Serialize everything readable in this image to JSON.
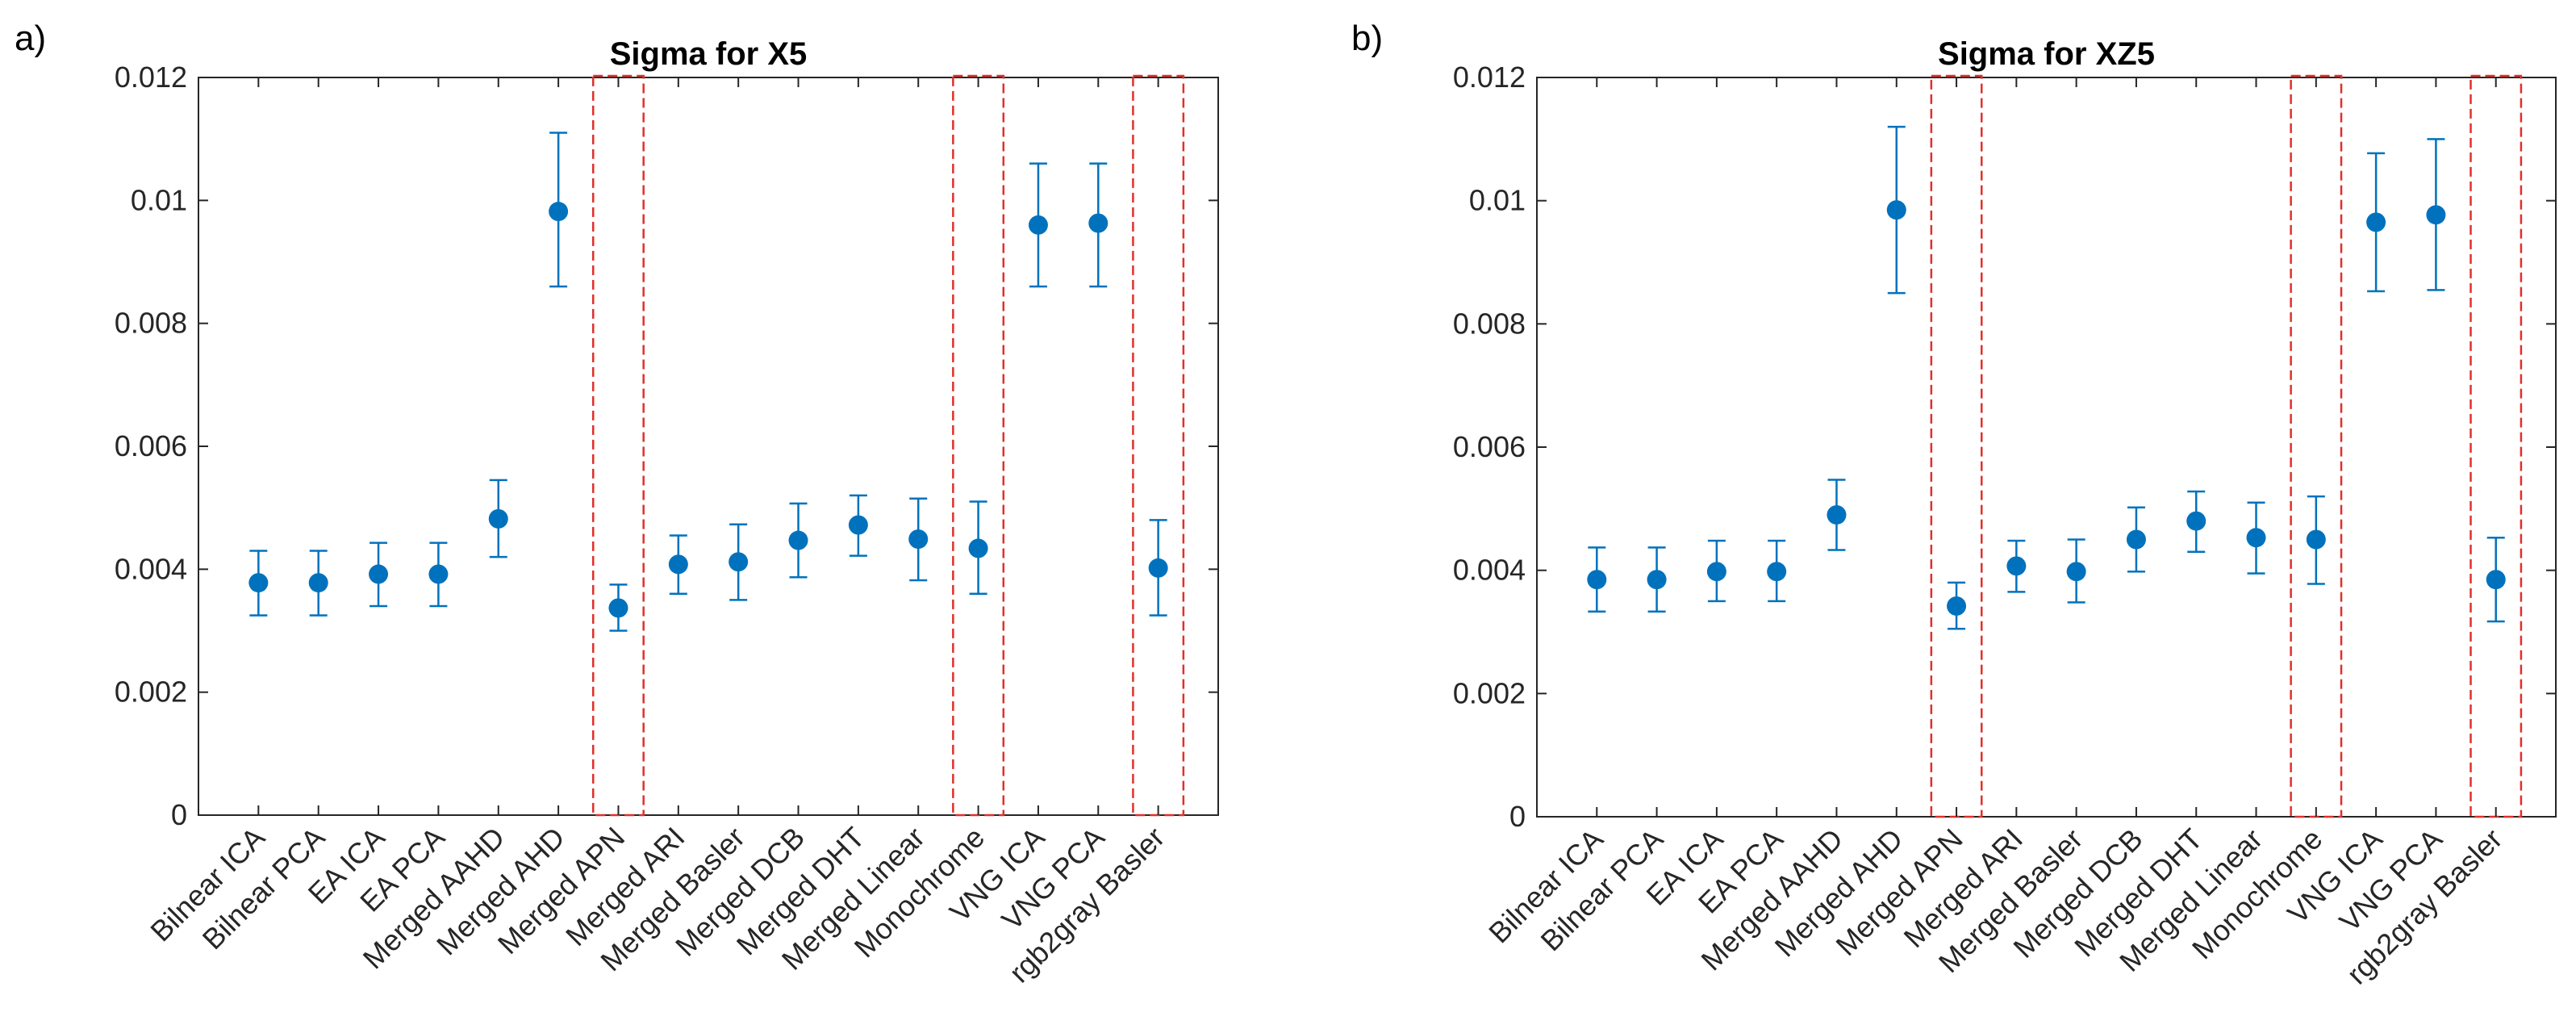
{
  "colors": {
    "marker": "#0072BD",
    "highlight": "#E0302A",
    "axis": "#262626"
  },
  "chart_data": [
    {
      "panel_label": "a)",
      "type": "scatter",
      "title": "Sigma for X5",
      "xlabel": "",
      "ylabel": "",
      "ylim": [
        0,
        0.012
      ],
      "yticks": [
        "0",
        "0.002",
        "0.004",
        "0.006",
        "0.008",
        "0.01",
        "0.012"
      ],
      "categories": [
        "Bilnear ICA",
        "Bilnear PCA",
        "EA ICA",
        "EA PCA",
        "Merged AAHD",
        "Merged AHD",
        "Merged APN",
        "Merged ARI",
        "Merged Basler",
        "Merged DCB",
        "Merged DHT",
        "Merged Linear",
        "Monochrome",
        "VNG ICA",
        "VNG PCA",
        "rgb2gray Basler"
      ],
      "values": [
        0.00378,
        0.00378,
        0.00392,
        0.00392,
        0.00482,
        0.00982,
        0.00337,
        0.00408,
        0.00412,
        0.00447,
        0.00472,
        0.00449,
        0.00434,
        0.0096,
        0.00963,
        0.00402
      ],
      "err_low": [
        0.00325,
        0.00325,
        0.0034,
        0.0034,
        0.0042,
        0.0086,
        0.003,
        0.0036,
        0.0035,
        0.00387,
        0.00422,
        0.00382,
        0.0036,
        0.0086,
        0.0086,
        0.00325
      ],
      "err_high": [
        0.0043,
        0.0043,
        0.00443,
        0.00443,
        0.00545,
        0.0111,
        0.00375,
        0.00455,
        0.00473,
        0.00507,
        0.0052,
        0.00515,
        0.0051,
        0.0106,
        0.0106,
        0.0048
      ],
      "highlighted": [
        "Merged APN",
        "Monochrome",
        "rgb2gray Basler"
      ]
    },
    {
      "panel_label": "b)",
      "type": "scatter",
      "title": "Sigma for XZ5",
      "xlabel": "",
      "ylabel": "",
      "ylim": [
        0,
        0.012
      ],
      "yticks": [
        "0",
        "0.002",
        "0.004",
        "0.006",
        "0.008",
        "0.01",
        "0.012"
      ],
      "categories": [
        "Bilnear ICA",
        "Bilnear PCA",
        "EA ICA",
        "EA PCA",
        "Merged AAHD",
        "Merged AHD",
        "Merged APN",
        "Merged ARI",
        "Merged Basler",
        "Merged DCB",
        "Merged DHT",
        "Merged Linear",
        "Monochrome",
        "VNG ICA",
        "VNG PCA",
        "rgb2gray Basler"
      ],
      "values": [
        0.00385,
        0.00385,
        0.00398,
        0.00398,
        0.0049,
        0.00985,
        0.00342,
        0.00407,
        0.00398,
        0.0045,
        0.0048,
        0.00453,
        0.0045,
        0.00965,
        0.00977,
        0.00385
      ],
      "err_low": [
        0.00333,
        0.00333,
        0.0035,
        0.0035,
        0.00433,
        0.0085,
        0.00305,
        0.00365,
        0.00348,
        0.00398,
        0.0043,
        0.00395,
        0.00378,
        0.00853,
        0.00855,
        0.00317
      ],
      "err_high": [
        0.00437,
        0.00437,
        0.00448,
        0.00448,
        0.00547,
        0.0112,
        0.0038,
        0.00448,
        0.0045,
        0.00502,
        0.00528,
        0.0051,
        0.0052,
        0.01077,
        0.011,
        0.00453
      ],
      "highlighted": [
        "Merged APN",
        "Monochrome",
        "rgb2gray Basler"
      ]
    }
  ]
}
